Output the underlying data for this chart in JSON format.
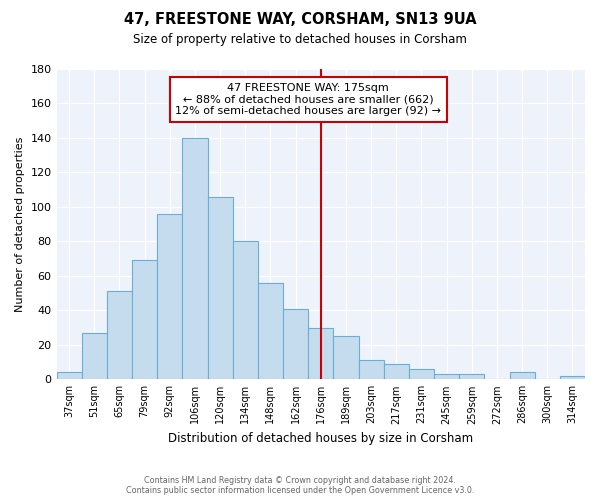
{
  "title": "47, FREESTONE WAY, CORSHAM, SN13 9UA",
  "subtitle": "Size of property relative to detached houses in Corsham",
  "xlabel": "Distribution of detached houses by size in Corsham",
  "ylabel": "Number of detached properties",
  "bar_labels": [
    "37sqm",
    "51sqm",
    "65sqm",
    "79sqm",
    "92sqm",
    "106sqm",
    "120sqm",
    "134sqm",
    "148sqm",
    "162sqm",
    "176sqm",
    "189sqm",
    "203sqm",
    "217sqm",
    "231sqm",
    "245sqm",
    "259sqm",
    "272sqm",
    "286sqm",
    "300sqm",
    "314sqm"
  ],
  "bar_values": [
    4,
    27,
    51,
    69,
    96,
    140,
    106,
    80,
    56,
    41,
    30,
    25,
    11,
    9,
    6,
    3,
    3,
    0,
    4,
    0,
    2
  ],
  "bar_color": "#c5dcee",
  "bar_edge_color": "#6aaed6",
  "vline_x": 10,
  "vline_color": "#cc0000",
  "annotation_title": "47 FREESTONE WAY: 175sqm",
  "annotation_line1": "← 88% of detached houses are smaller (662)",
  "annotation_line2": "12% of semi-detached houses are larger (92) →",
  "annotation_box_facecolor": "#ffffff",
  "annotation_box_edgecolor": "#cc0000",
  "bg_color": "#eef2fb",
  "grid_color": "#cccccc",
  "footer1": "Contains HM Land Registry data © Crown copyright and database right 2024.",
  "footer2": "Contains public sector information licensed under the Open Government Licence v3.0.",
  "ylim": [
    0,
    180
  ],
  "yticks": [
    0,
    20,
    40,
    60,
    80,
    100,
    120,
    140,
    160,
    180
  ]
}
